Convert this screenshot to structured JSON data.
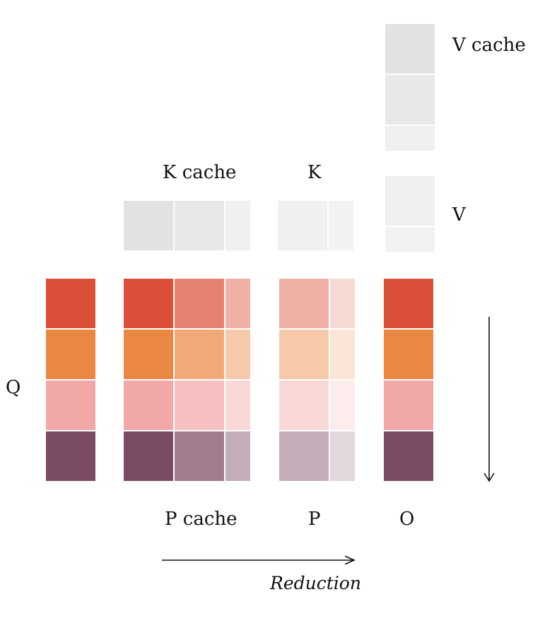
{
  "labels": {
    "v_cache": "V cache",
    "k_cache": "K cache",
    "k": "K",
    "v": "V",
    "q": "Q",
    "p_cache": "P cache",
    "p": "P",
    "o": "O",
    "reduction": "Reduction"
  },
  "colors": {
    "row_base": [
      "#dc503a",
      "#ea8843",
      "#f3a8a8",
      "#7b4a63"
    ],
    "kcache_tiles": [
      "#e2e2e2",
      "#e8e8e8",
      "#f0f0f0"
    ],
    "k_tiles": [
      "#f0f0f0",
      "#f2f2f2"
    ],
    "vcache_tiles": [
      "#e2e2e2",
      "#e8e8e8",
      "#f0f0f0"
    ],
    "v_tiles": [
      "#f0f0f0",
      "#f2f2f2"
    ],
    "arrow": "#111111"
  },
  "blocks": {
    "q": {
      "alphas": [
        1.0
      ]
    },
    "p_cache": {
      "alphas": [
        1.0,
        0.72,
        0.45
      ]
    },
    "p": {
      "alphas": [
        0.45,
        0.22
      ]
    },
    "o": {
      "alphas": [
        1.0
      ]
    }
  }
}
